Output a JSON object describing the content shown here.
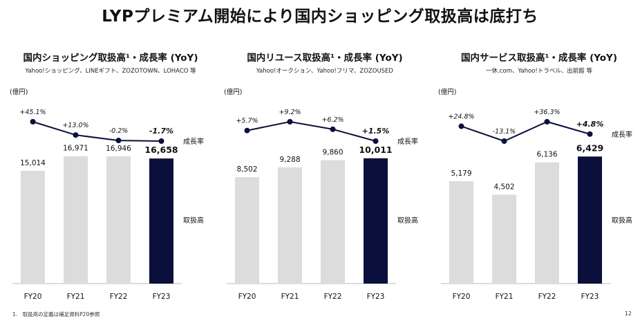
{
  "title": "LYPプレミアム開始により国内ショッピング取扱高は底打ち",
  "footnote": "1.　取扱高の定義は補足資料P20参照",
  "page_number": "12",
  "colors": {
    "bar": "#dcdcdc",
    "bar_highlight": "#0b0f3b",
    "line": "#0b0f3b"
  },
  "chart_data": [
    {
      "type": "bar",
      "title": "国内ショッピング取扱高¹・成長率 (YoY)",
      "subtitle": "Yahoo!ショッピング、LINEギフト、ZOZOTOWN、LOHACO 等",
      "unit": "(億円)",
      "bar_label": "取扱高",
      "line_label": "成長率",
      "categories": [
        "FY20",
        "FY21",
        "FY22",
        "FY23"
      ],
      "values": [
        15014,
        16971,
        16946,
        16658
      ],
      "value_labels": [
        "15,014",
        "16,971",
        "16,946",
        "16,658"
      ],
      "growth": [
        45.1,
        13.0,
        -0.2,
        -1.7
      ],
      "growth_labels": [
        "+45.1%",
        "+13.0%",
        "-0.2%",
        "-1.7%"
      ],
      "ylim": [
        0,
        17500
      ]
    },
    {
      "type": "bar",
      "title": "国内リユース取扱高¹・成長率 (YoY)",
      "subtitle": "Yahoo!オークション、Yahoo!フリマ、ZOZOUSED",
      "unit": "(億円)",
      "bar_label": "取扱高",
      "line_label": "成長率",
      "categories": [
        "FY20",
        "FY21",
        "FY22",
        "FY23"
      ],
      "values": [
        8502,
        9288,
        9860,
        10011
      ],
      "value_labels": [
        "8,502",
        "9,288",
        "9,860",
        "10,011"
      ],
      "growth": [
        5.7,
        9.2,
        6.2,
        1.5
      ],
      "growth_labels": [
        "+5.7%",
        "+9.2%",
        "+6.2%",
        "+1.5%"
      ],
      "ylim": [
        0,
        10500
      ]
    },
    {
      "type": "bar",
      "title": "国内サービス取扱高¹・成長率 (YoY)",
      "subtitle": "一休.com、Yahoo!トラベル、出前館 等",
      "unit": "(億円)",
      "bar_label": "取扱高",
      "line_label": "成長率",
      "categories": [
        "FY20",
        "FY21",
        "FY22",
        "FY23"
      ],
      "values": [
        5179,
        4502,
        6136,
        6429
      ],
      "value_labels": [
        "5,179",
        "4,502",
        "6,136",
        "6,429"
      ],
      "growth": [
        24.8,
        -13.1,
        36.3,
        4.8
      ],
      "growth_labels": [
        "+24.8%",
        "-13.1%",
        "+36.3%",
        "+4.8%"
      ],
      "ylim": [
        0,
        6650
      ]
    }
  ]
}
